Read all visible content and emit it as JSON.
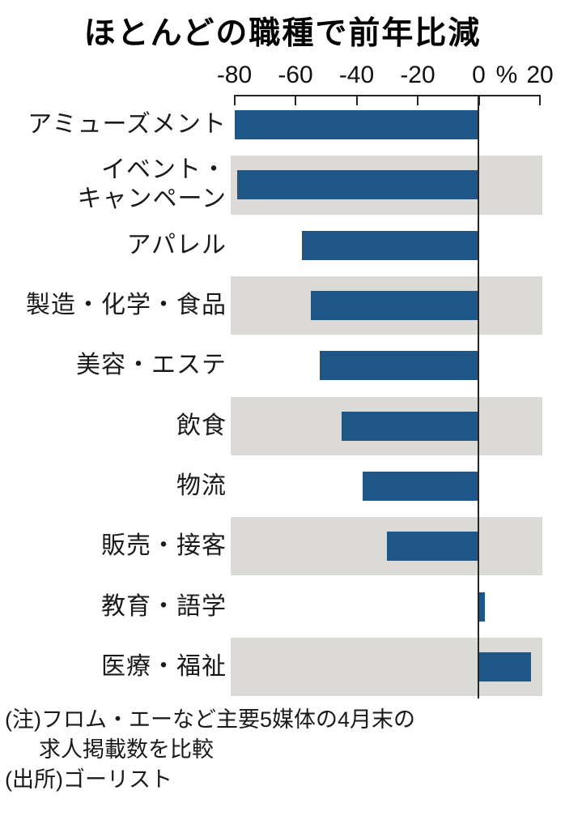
{
  "chart_data": {
    "type": "bar",
    "orientation": "horizontal",
    "title": "ほとんどの職種で前年比減",
    "unit_label": "%",
    "xlabel": "%",
    "xlim": [
      -80.7,
      21.3
    ],
    "xticks": [
      -80,
      -60,
      -40,
      -20,
      0,
      20
    ],
    "grid": false,
    "legend": "none",
    "categories": [
      "アミューズメント",
      "イベント・キャンペーン",
      "アパレル",
      "製造・化学・食品",
      "美容・エステ",
      "飲食",
      "物流",
      "販売・接客",
      "教育・語学",
      "医療・福祉"
    ],
    "display_labels": [
      [
        "アミューズメント"
      ],
      [
        "イベント・",
        "キャンペーン"
      ],
      [
        "アパレル"
      ],
      [
        "製造・化学・食品"
      ],
      [
        "美容・エステ"
      ],
      [
        "飲食"
      ],
      [
        "物流"
      ],
      [
        "販売・接客"
      ],
      [
        "教育・語学"
      ],
      [
        "医療・福祉"
      ]
    ],
    "values": [
      -80,
      -79,
      -58,
      -55,
      -52,
      -45,
      -38,
      -30,
      2,
      17
    ],
    "bar_color": "#1e5787",
    "band_color": "#dcdad7",
    "axis_color": "#262626",
    "striped_rows": [
      1,
      3,
      5,
      7,
      9
    ]
  },
  "notes": {
    "note_line1": "(注)フロム・エーなど主要5媒体の4月末の",
    "note_line2": "求人掲載数を比較",
    "source": "(出所)ゴーリスト"
  }
}
